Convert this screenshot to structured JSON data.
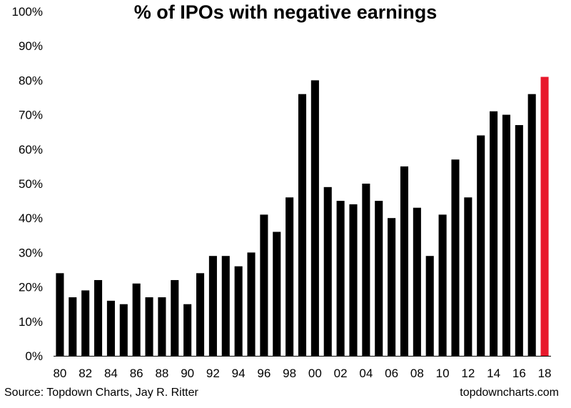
{
  "footer": {
    "source": "Source: Topdown Charts, Jay R. Ritter",
    "site": "topdowncharts.com"
  },
  "chart_data": {
    "type": "bar",
    "title": "% of IPOs with negative earnings",
    "xlabel": "",
    "ylabel": "",
    "ylim": [
      0,
      100
    ],
    "yticks": [
      "0%",
      "10%",
      "20%",
      "30%",
      "40%",
      "50%",
      "60%",
      "70%",
      "80%",
      "90%",
      "100%"
    ],
    "xtick_labels": [
      "80",
      "82",
      "84",
      "86",
      "88",
      "90",
      "92",
      "94",
      "96",
      "98",
      "00",
      "02",
      "04",
      "06",
      "08",
      "10",
      "12",
      "14",
      "16",
      "18"
    ],
    "categories": [
      "1980",
      "1981",
      "1982",
      "1983",
      "1984",
      "1985",
      "1986",
      "1987",
      "1988",
      "1989",
      "1990",
      "1991",
      "1992",
      "1993",
      "1994",
      "1995",
      "1996",
      "1997",
      "1998",
      "1999",
      "2000",
      "2001",
      "2002",
      "2003",
      "2004",
      "2005",
      "2006",
      "2007",
      "2008",
      "2009",
      "2010",
      "2011",
      "2012",
      "2013",
      "2014",
      "2015",
      "2016",
      "2017",
      "2018"
    ],
    "values": [
      24,
      17,
      19,
      22,
      16,
      15,
      21,
      17,
      17,
      22,
      15,
      24,
      29,
      29,
      26,
      30,
      41,
      36,
      46,
      76,
      80,
      49,
      45,
      44,
      50,
      45,
      40,
      55,
      43,
      29,
      41,
      57,
      46,
      64,
      71,
      70,
      67,
      76,
      81
    ],
    "bar_color": "#000000",
    "highlight_color": "#e8192c",
    "highlight_index": 38,
    "grid": false
  }
}
